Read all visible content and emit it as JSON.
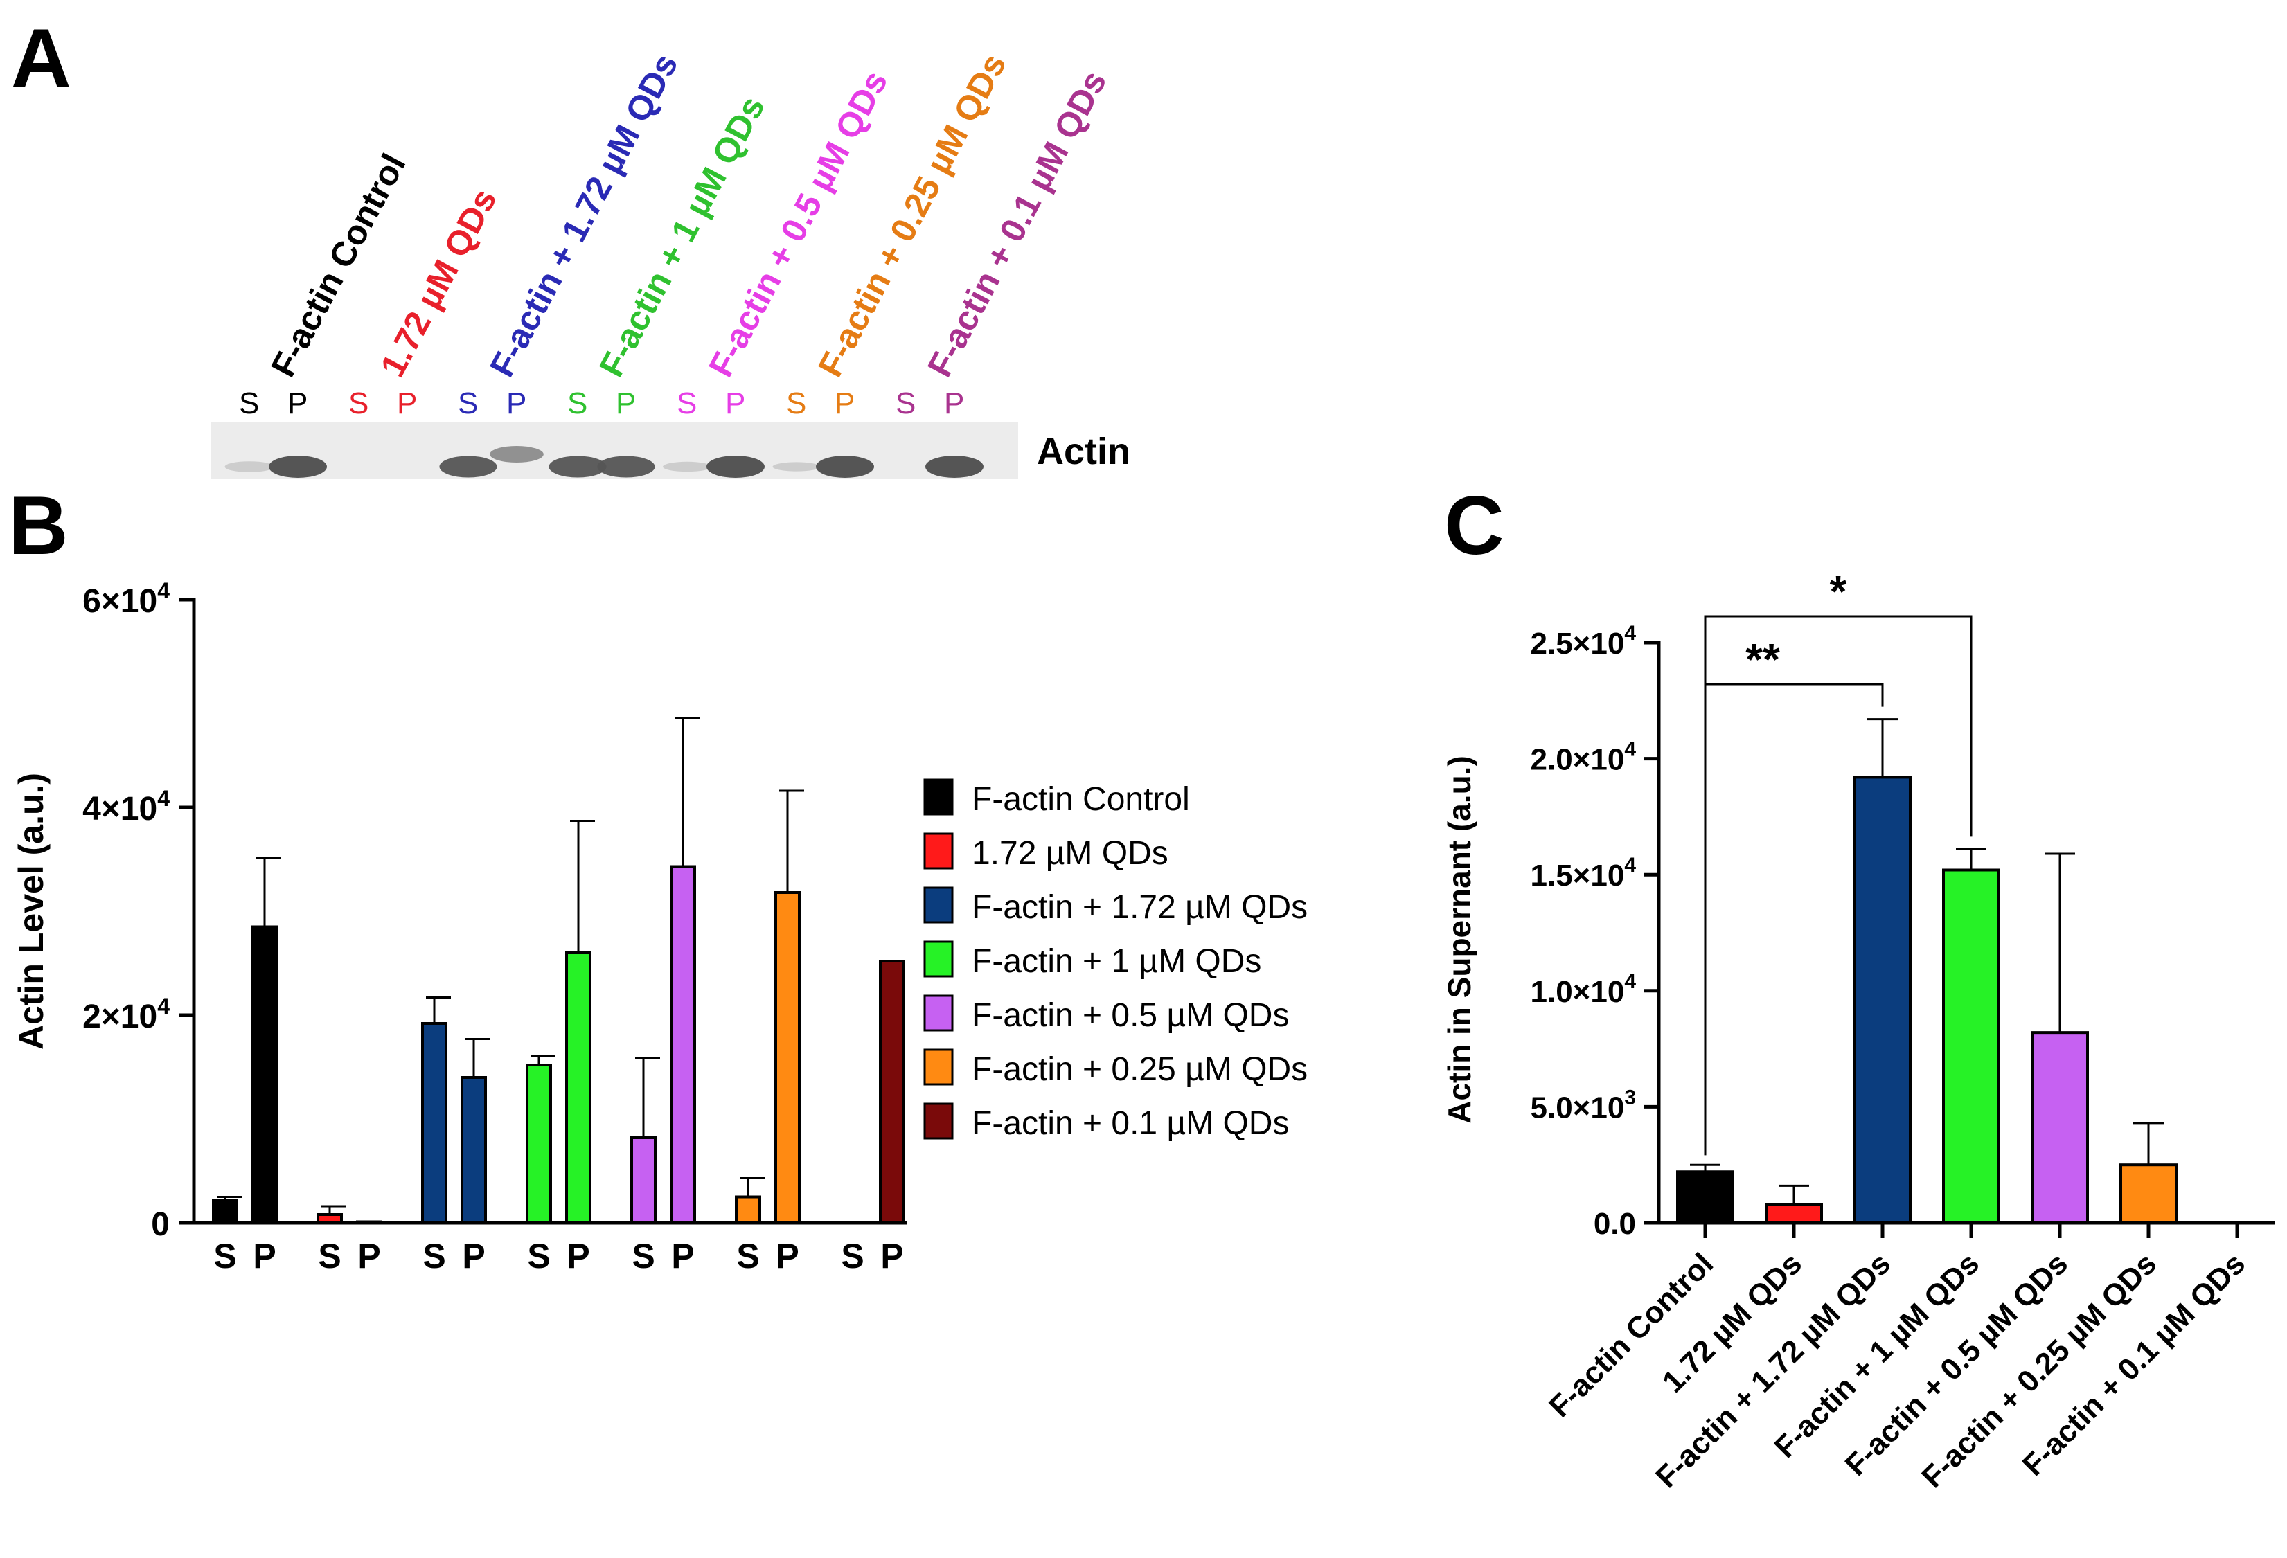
{
  "figure": {
    "panel_a": {
      "letter": "A",
      "lanes": [
        {
          "title": "F-actin Control",
          "color": "#000000",
          "s": "S",
          "p": "P"
        },
        {
          "title": "1.72 µM QDs",
          "color": "#e8202b",
          "s": "S",
          "p": "P"
        },
        {
          "title": "F-actin + 1.72 µM QDs",
          "color": "#2a2ab5",
          "s": "S",
          "p": "P"
        },
        {
          "title": "F-actin + 1 µM QDs",
          "color": "#2fc12f",
          "s": "S",
          "p": "P"
        },
        {
          "title": "F-actin + 0.5 µM QDs",
          "color": "#e63ee6",
          "s": "S",
          "p": "P"
        },
        {
          "title": "F-actin + 0.25 µM QDs",
          "color": "#e57c14",
          "s": "S",
          "p": "P"
        },
        {
          "title": "F-actin + 0.1 µM QDs",
          "color": "#a9338f",
          "s": "S",
          "p": "P"
        }
      ],
      "band_label": "Actin"
    },
    "panel_b_letter": "B",
    "panel_c_letter": "C"
  },
  "chart_data": [
    {
      "id": "B",
      "type": "bar",
      "ylabel": "Actin Level (a.u.)",
      "ylim": [
        0,
        60000
      ],
      "yticks": [
        {
          "value": 0,
          "label": "0"
        },
        {
          "value": 20000,
          "label": "2×10",
          "exp": "4"
        },
        {
          "value": 40000,
          "label": "4×10",
          "exp": "4"
        },
        {
          "value": 60000,
          "label": "6×10",
          "exp": "4"
        }
      ],
      "categories": [
        "S",
        "P"
      ],
      "series": [
        {
          "name": "F-actin Control",
          "color": "#000000",
          "values": [
            2200,
            28500
          ],
          "errors": [
            300,
            6600
          ]
        },
        {
          "name": "1.72 µM QDs",
          "color": "#ff1a1a",
          "values": [
            800,
            100
          ],
          "errors": [
            800,
            0
          ]
        },
        {
          "name": "F-actin + 1.72 µM QDs",
          "color": "#0b3d7e",
          "values": [
            19200,
            14000
          ],
          "errors": [
            2500,
            3700
          ]
        },
        {
          "name": "F-actin + 1 µM QDs",
          "color": "#26f226",
          "values": [
            15200,
            26000
          ],
          "errors": [
            900,
            12700
          ]
        },
        {
          "name": "F-actin + 0.5 µM QDs",
          "color": "#c661f2",
          "values": [
            8200,
            34300
          ],
          "errors": [
            7700,
            14300
          ]
        },
        {
          "name": "F-actin + 0.25 µM QDs",
          "color": "#ff8a12",
          "values": [
            2500,
            31800
          ],
          "errors": [
            1800,
            9800
          ]
        },
        {
          "name": "F-actin + 0.1 µM QDs",
          "color": "#7a0a0a",
          "values": [
            0,
            25200
          ],
          "errors": [
            0,
            0
          ]
        }
      ],
      "legend_position": "right"
    },
    {
      "id": "C",
      "type": "bar",
      "ylabel": "Actin in Supernant (a.u.)",
      "ylim": [
        0,
        25000
      ],
      "yticks": [
        {
          "value": 0,
          "label": "0.0"
        },
        {
          "value": 5000,
          "label": "5.0×10",
          "exp": "3"
        },
        {
          "value": 10000,
          "label": "1.0×10",
          "exp": "4"
        },
        {
          "value": 15000,
          "label": "1.5×10",
          "exp": "4"
        },
        {
          "value": 20000,
          "label": "2.0×10",
          "exp": "4"
        },
        {
          "value": 25000,
          "label": "2.5×10",
          "exp": "4"
        }
      ],
      "categories": [
        "F-actin Control",
        "1.72 µM QDs",
        "F-actin + 1.72 µM QDs",
        "F-actin + 1 µM QDs",
        "F-actin + 0.5 µM QDs",
        "F-actin + 0.25 µM QDs",
        "F-actin + 0.1 µM QDs"
      ],
      "colors": [
        "#000000",
        "#ff1a1a",
        "#0b3d7e",
        "#26f226",
        "#c661f2",
        "#ff8a12",
        "#7a0a0a"
      ],
      "values": [
        2200,
        800,
        19200,
        15200,
        8200,
        2500,
        0
      ],
      "errors": [
        300,
        800,
        2500,
        900,
        7700,
        1800,
        0
      ],
      "significance": [
        {
          "from": 0,
          "to": 2,
          "label": "**"
        },
        {
          "from": 0,
          "to": 3,
          "label": "*"
        }
      ]
    }
  ]
}
